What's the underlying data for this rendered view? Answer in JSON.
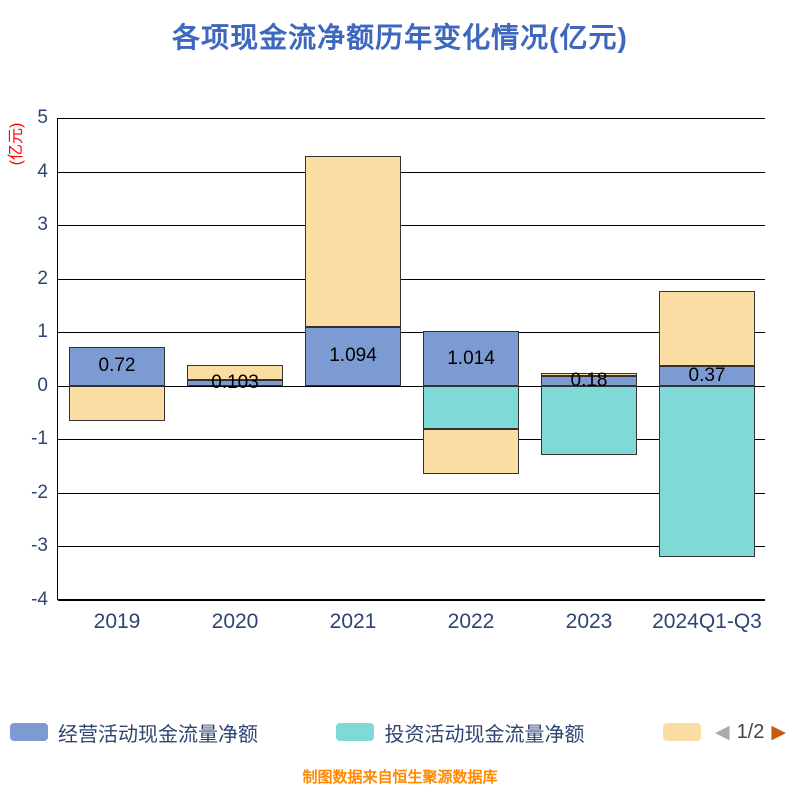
{
  "colors": {
    "title": "#3d68be",
    "axis_text": "#2f4571",
    "y_label": "#ff0000",
    "footer": "#ff8a00",
    "grid": "#000000",
    "bar_border": "#333333",
    "page_text": "#444444",
    "arrow_prev": "#ababab",
    "arrow_next": "#c55a11"
  },
  "chart_data": {
    "type": "bar",
    "stacked": true,
    "title": "各项现金流净额历年变化情况(亿元)",
    "ylabel": "(亿元)",
    "xlabel": "",
    "ylim": [
      -4,
      5
    ],
    "ytick_step": 1,
    "yticks": [
      5,
      4,
      3,
      2,
      1,
      0,
      -1,
      -2,
      -3,
      -4
    ],
    "grid": true,
    "legend_position": "bottom",
    "categories": [
      "2019",
      "2020",
      "2021",
      "2022",
      "2023",
      "2024Q1-Q3"
    ],
    "series": [
      {
        "name": "经营活动现金流量净额",
        "color": "#7d9bd3",
        "values": [
          0.72,
          0.103,
          1.094,
          1.014,
          0.18,
          0.37
        ]
      },
      {
        "name": "投资活动现金流量净额",
        "color": "#7fd9d7",
        "values": [
          0,
          0,
          0,
          -0.8,
          -1.3,
          -3.2
        ]
      },
      {
        "name": "",
        "color": "#fbdca3",
        "values": [
          -0.65,
          0.28,
          3.2,
          -0.85,
          0.05,
          1.4
        ]
      }
    ],
    "bar_labels": [
      "0.72",
      "0.103",
      "1.094",
      "1.014",
      "0.18",
      "0.37"
    ]
  },
  "legend": {
    "items": [
      {
        "label": "经营活动现金流量净额",
        "color": "#7d9bd3"
      },
      {
        "label": "投资活动现金流量净额",
        "color": "#7fd9d7"
      },
      {
        "label": "",
        "color": "#fbdca3"
      }
    ],
    "page": "1/2",
    "prev_icon": "◀",
    "next_icon": "▶"
  },
  "footer": {
    "source": "制图数据来自恒生聚源数据库"
  }
}
